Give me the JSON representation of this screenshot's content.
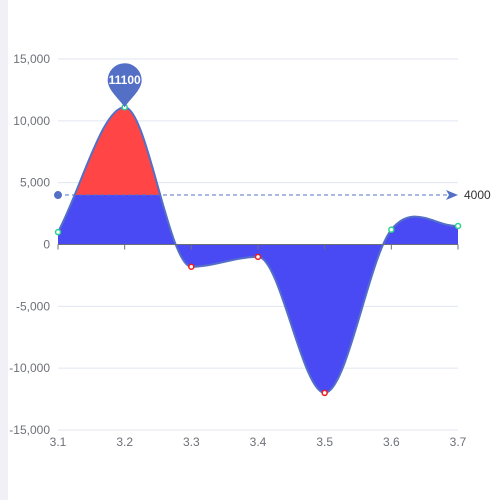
{
  "chart_data": {
    "type": "area",
    "x": [
      "3.1",
      "3.2",
      "3.3",
      "3.4",
      "3.5",
      "3.6",
      "3.7"
    ],
    "values": [
      1000,
      11100,
      -1800,
      -1000,
      -12000,
      1200,
      1500
    ],
    "ylim": [
      -15000,
      15000
    ],
    "yticks": [
      -15000,
      -10000,
      -5000,
      0,
      5000,
      10000,
      15000
    ],
    "ytick_labels": [
      "-15,000",
      "-10,000",
      "-5,000",
      "0",
      "5,000",
      "10,000",
      "15,000"
    ],
    "grid": true,
    "smooth": true,
    "mark_point": {
      "x": "3.2",
      "value": 11100,
      "label": "11100"
    },
    "mark_line": {
      "value": 4000,
      "label": "4000"
    },
    "colors": {
      "line": "#5470c6",
      "area_below": "#4a4af5",
      "area_above": "#ff4545",
      "pin": "#5470c6",
      "positive_point": "#29d38c",
      "negative_point": "#ee1d1d"
    }
  }
}
